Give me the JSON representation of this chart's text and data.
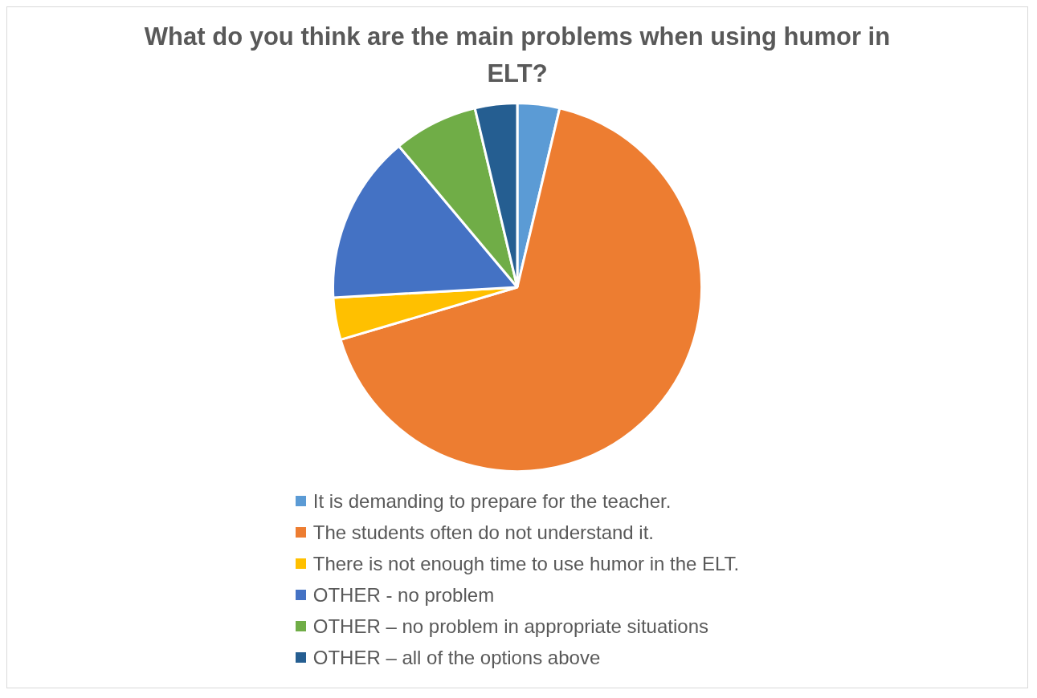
{
  "chart_data": {
    "type": "pie",
    "title": "What do you think are the main problems when using humor in ELT?",
    "categories": [
      "It is demanding to prepare for the teacher.",
      "The students often do not understand it.",
      "There is not enough time to use humor in the ELT.",
      "OTHER - no problem",
      "OTHER – no problem in appropriate situations",
      "OTHER – all of the options above"
    ],
    "values": [
      3.7,
      66.7,
      3.7,
      14.8,
      7.4,
      3.7
    ],
    "colors": [
      "#5b9bd5",
      "#ed7d31",
      "#ffc000",
      "#4472c4",
      "#70ad47",
      "#255e91"
    ],
    "legend": "bottom"
  }
}
